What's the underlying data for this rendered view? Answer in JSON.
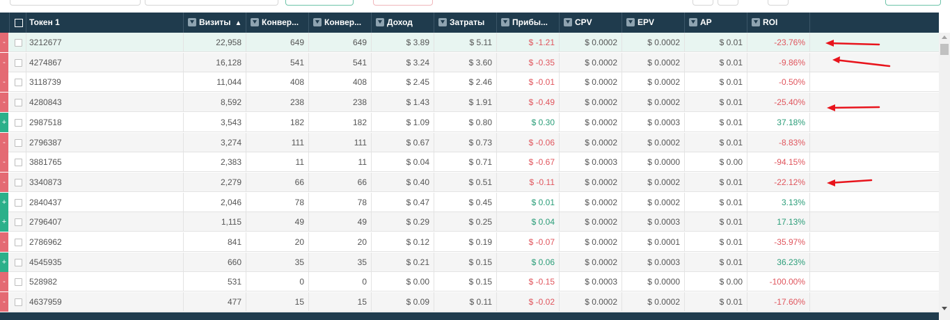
{
  "columns": {
    "token": "Токен 1",
    "visits": "Визиты",
    "conv1": "Конвер...",
    "conv2": "Конвер...",
    "revenue": "Доход",
    "costs": "Затраты",
    "profit": "Прибы...",
    "cpv": "CPV",
    "epv": "EPV",
    "ap": "AP",
    "roi": "ROI"
  },
  "rows": [
    {
      "tag": "-",
      "id": "3212677",
      "visits": "22,958",
      "c1": "649",
      "c2": "649",
      "rev": "$ 3.89",
      "cost": "$ 5.11",
      "profit": "$ -1.21",
      "cpv": "$ 0.0002",
      "epv": "$ 0.0002",
      "ap": "$ 0.01",
      "roi": "-23.76%"
    },
    {
      "tag": "-",
      "id": "4274867",
      "visits": "16,128",
      "c1": "541",
      "c2": "541",
      "rev": "$ 3.24",
      "cost": "$ 3.60",
      "profit": "$ -0.35",
      "cpv": "$ 0.0002",
      "epv": "$ 0.0002",
      "ap": "$ 0.01",
      "roi": "-9.86%"
    },
    {
      "tag": "-",
      "id": "3118739",
      "visits": "11,044",
      "c1": "408",
      "c2": "408",
      "rev": "$ 2.45",
      "cost": "$ 2.46",
      "profit": "$ -0.01",
      "cpv": "$ 0.0002",
      "epv": "$ 0.0002",
      "ap": "$ 0.01",
      "roi": "-0.50%"
    },
    {
      "tag": "-",
      "id": "4280843",
      "visits": "8,592",
      "c1": "238",
      "c2": "238",
      "rev": "$ 1.43",
      "cost": "$ 1.91",
      "profit": "$ -0.49",
      "cpv": "$ 0.0002",
      "epv": "$ 0.0002",
      "ap": "$ 0.01",
      "roi": "-25.40%"
    },
    {
      "tag": "+",
      "id": "2987518",
      "visits": "3,543",
      "c1": "182",
      "c2": "182",
      "rev": "$ 1.09",
      "cost": "$ 0.80",
      "profit": "$ 0.30",
      "cpv": "$ 0.0002",
      "epv": "$ 0.0003",
      "ap": "$ 0.01",
      "roi": "37.18%"
    },
    {
      "tag": "-",
      "id": "2796387",
      "visits": "3,274",
      "c1": "111",
      "c2": "111",
      "rev": "$ 0.67",
      "cost": "$ 0.73",
      "profit": "$ -0.06",
      "cpv": "$ 0.0002",
      "epv": "$ 0.0002",
      "ap": "$ 0.01",
      "roi": "-8.83%"
    },
    {
      "tag": "-",
      "id": "3881765",
      "visits": "2,383",
      "c1": "11",
      "c2": "11",
      "rev": "$ 0.04",
      "cost": "$ 0.71",
      "profit": "$ -0.67",
      "cpv": "$ 0.0003",
      "epv": "$ 0.0000",
      "ap": "$ 0.00",
      "roi": "-94.15%"
    },
    {
      "tag": "-",
      "id": "3340873",
      "visits": "2,279",
      "c1": "66",
      "c2": "66",
      "rev": "$ 0.40",
      "cost": "$ 0.51",
      "profit": "$ -0.11",
      "cpv": "$ 0.0002",
      "epv": "$ 0.0002",
      "ap": "$ 0.01",
      "roi": "-22.12%"
    },
    {
      "tag": "+",
      "id": "2840437",
      "visits": "2,046",
      "c1": "78",
      "c2": "78",
      "rev": "$ 0.47",
      "cost": "$ 0.45",
      "profit": "$ 0.01",
      "cpv": "$ 0.0002",
      "epv": "$ 0.0002",
      "ap": "$ 0.01",
      "roi": "3.13%"
    },
    {
      "tag": "+",
      "id": "2796407",
      "visits": "1,115",
      "c1": "49",
      "c2": "49",
      "rev": "$ 0.29",
      "cost": "$ 0.25",
      "profit": "$ 0.04",
      "cpv": "$ 0.0002",
      "epv": "$ 0.0003",
      "ap": "$ 0.01",
      "roi": "17.13%"
    },
    {
      "tag": "-",
      "id": "2786962",
      "visits": "841",
      "c1": "20",
      "c2": "20",
      "rev": "$ 0.12",
      "cost": "$ 0.19",
      "profit": "$ -0.07",
      "cpv": "$ 0.0002",
      "epv": "$ 0.0001",
      "ap": "$ 0.01",
      "roi": "-35.97%"
    },
    {
      "tag": "+",
      "id": "4545935",
      "visits": "660",
      "c1": "35",
      "c2": "35",
      "rev": "$ 0.21",
      "cost": "$ 0.15",
      "profit": "$ 0.06",
      "cpv": "$ 0.0002",
      "epv": "$ 0.0003",
      "ap": "$ 0.01",
      "roi": "36.23%"
    },
    {
      "tag": "-",
      "id": "528982",
      "visits": "531",
      "c1": "0",
      "c2": "0",
      "rev": "$ 0.00",
      "cost": "$ 0.15",
      "profit": "$ -0.15",
      "cpv": "$ 0.0003",
      "epv": "$ 0.0000",
      "ap": "$ 0.00",
      "roi": "-100.00%"
    },
    {
      "tag": "-",
      "id": "4637959",
      "visits": "477",
      "c1": "15",
      "c2": "15",
      "rev": "$ 0.09",
      "cost": "$ 0.11",
      "profit": "$ -0.02",
      "cpv": "$ 0.0002",
      "epv": "$ 0.0002",
      "ap": "$ 0.01",
      "roi": "-17.60%"
    }
  ],
  "colors": {
    "header_bg": "#1f3b4d",
    "negative": "#e0555d",
    "positive": "#2a9d78",
    "tag_minus": "#e46a73",
    "tag_plus": "#2bb08a",
    "arrow": "#e8141c"
  }
}
